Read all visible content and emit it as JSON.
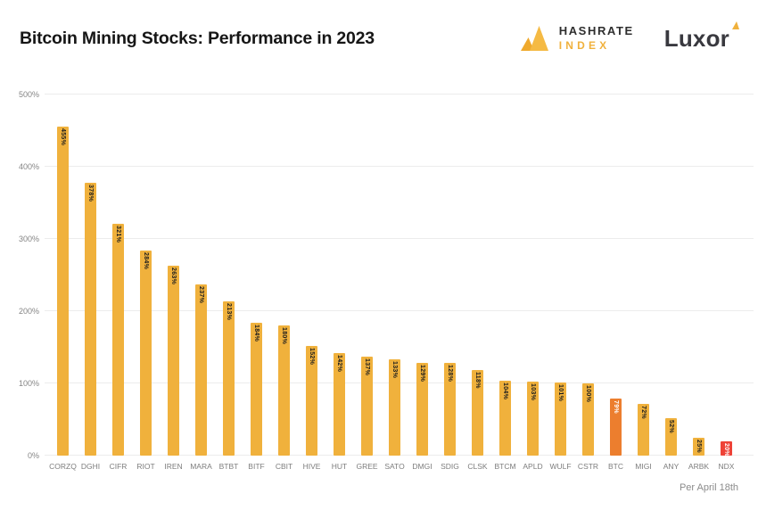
{
  "header": {
    "title": "Bitcoin Mining Stocks: Performance in 2023",
    "hashrate_logo_line1": "HASHRATE",
    "hashrate_logo_line2": "INDEX",
    "luxor_logo_text": "Luxor"
  },
  "footer": {
    "note": "Per April 18th"
  },
  "colors": {
    "brand_gold": "#F0B13C",
    "btc_orange": "#EC7E2E",
    "ndx_red": "#EE4237",
    "title_text": "#161616",
    "axis_text": "#7D7D7D",
    "gridline": "#ECECEC",
    "bar_value_text_dark": "#1D1D1D",
    "bar_value_text_light": "#FFFFFF"
  },
  "chart_data": {
    "type": "bar",
    "title": "Bitcoin Mining Stocks: Performance in 2023",
    "xlabel": "",
    "ylabel": "",
    "ylim": [
      0,
      500
    ],
    "grid": true,
    "legend_position": "none",
    "annotation": "Per April 18th",
    "categories": [
      "CORZQ",
      "DGHI",
      "CIFR",
      "RIOT",
      "IREN",
      "MARA",
      "BTBT",
      "BITF",
      "CBIT",
      "HIVE",
      "HUT",
      "GREE",
      "SATO",
      "DMGI",
      "SDIG",
      "CLSK",
      "BTCM",
      "APLD",
      "WULF",
      "CSTR",
      "BTC",
      "MIGI",
      "ANY",
      "ARBK",
      "NDX"
    ],
    "values": [
      455,
      378,
      321,
      284,
      263,
      237,
      213,
      184,
      180,
      152,
      142,
      137,
      133,
      129,
      128,
      118,
      104,
      103,
      101,
      100,
      79,
      72,
      52,
      25,
      20
    ],
    "value_labels": [
      "455%",
      "378%",
      "321%",
      "284%",
      "263%",
      "237%",
      "213%",
      "184%",
      "180%",
      "152%",
      "142%",
      "137%",
      "133%",
      "129%",
      "128%",
      "118%",
      "104%",
      "103%",
      "101%",
      "100%",
      "79%",
      "72%",
      "52%",
      "25%",
      "20%"
    ],
    "yticks": [
      {
        "value": 0,
        "label": "0%"
      },
      {
        "value": 100,
        "label": "100%"
      },
      {
        "value": 200,
        "label": "200%"
      },
      {
        "value": 300,
        "label": "300%"
      },
      {
        "value": 400,
        "label": "400%"
      },
      {
        "value": 500,
        "label": "500%"
      }
    ],
    "default_bar_color": "#F0B13C",
    "default_value_label_color": "#1D1D1D",
    "highlights": {
      "BTC": {
        "bar": "#EC7E2E",
        "label": "#FFFFFF"
      },
      "NDX": {
        "bar": "#EE4237",
        "label": "#FFFFFF"
      }
    }
  }
}
